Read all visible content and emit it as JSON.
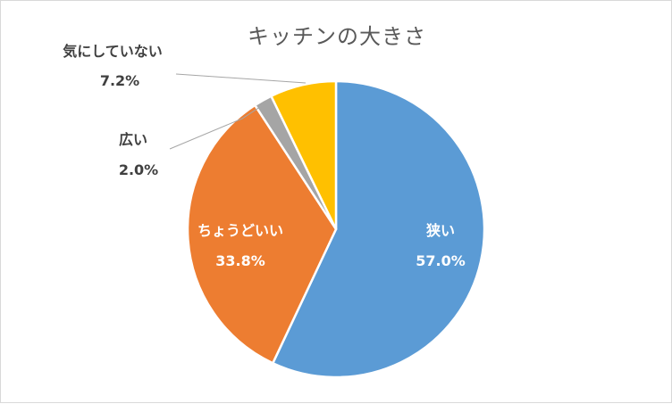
{
  "chart_data": {
    "type": "pie",
    "title": "キッチンの大きさ",
    "slices": [
      {
        "label": "狭い",
        "value": 57.0,
        "display": "57.0%",
        "color": "#5b9bd5",
        "label_style": "inside"
      },
      {
        "label": "ちょうどいい",
        "value": 33.8,
        "display": "33.8%",
        "color": "#ed7d31",
        "label_style": "inside"
      },
      {
        "label": "広い",
        "value": 2.0,
        "display": "2.0%",
        "color": "#a5a5a5",
        "label_style": "outside"
      },
      {
        "label": "気にしていない",
        "value": 7.2,
        "display": "7.2%",
        "color": "#ffc000",
        "label_style": "outside"
      }
    ],
    "start": "12 o'clock",
    "direction": "clockwise",
    "legend": "none"
  }
}
